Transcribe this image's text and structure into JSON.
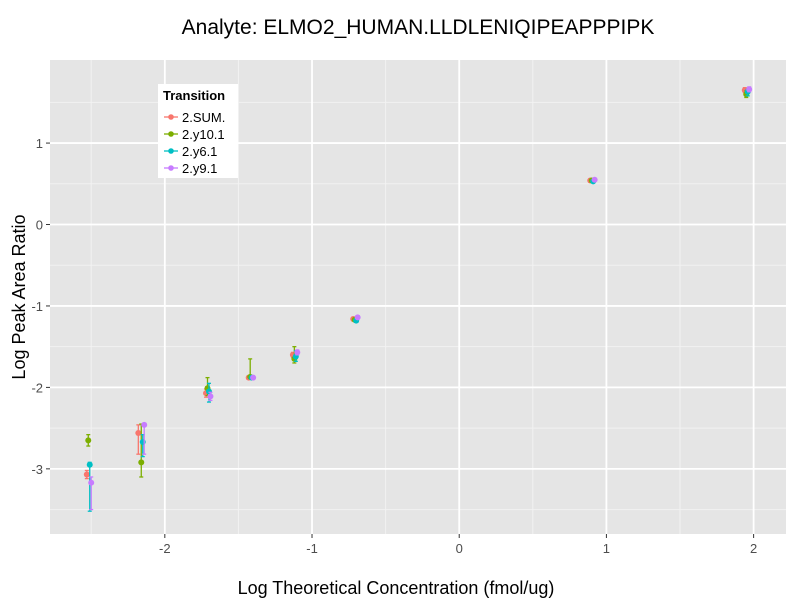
{
  "chart_data": {
    "type": "scatter",
    "title": "Analyte: ELMO2_HUMAN.LLDLENIQIPEAPPPIPK",
    "xlabel": "Log Theoretical Concentration (fmol/ug)",
    "ylabel": "Log Peak Area Ratio",
    "xlim": [
      -2.78,
      2.22
    ],
    "ylim": [
      -3.8,
      2.02
    ],
    "xticks": [
      -2,
      -1,
      0,
      1,
      2
    ],
    "xtick_labels": [
      "-2",
      "-1",
      "0",
      "1",
      "2"
    ],
    "yticks": [
      -3,
      -2,
      -1,
      0,
      1
    ],
    "ytick_labels": [
      "-3",
      "-2",
      "-1",
      "0",
      "1"
    ],
    "legend": {
      "title": "Transition",
      "position": "top-left-inside"
    },
    "series": [
      {
        "name": "2.SUM.",
        "color": "#F8766D",
        "points": [
          {
            "x": -2.53,
            "y": -3.07,
            "ymin": -3.12,
            "ymax": -3.02
          },
          {
            "x": -2.18,
            "y": -2.56,
            "ymin": -2.82,
            "ymax": -2.46
          },
          {
            "x": -1.72,
            "y": -2.07,
            "ymin": -2.12,
            "ymax": -2.02
          },
          {
            "x": -1.43,
            "y": -1.88,
            "ymin": -1.9,
            "ymax": -1.86
          },
          {
            "x": -1.13,
            "y": -1.6,
            "ymin": -1.63,
            "ymax": -1.57
          },
          {
            "x": -0.72,
            "y": -1.16,
            "ymin": -1.18,
            "ymax": -1.14
          },
          {
            "x": 0.89,
            "y": 0.54,
            "ymin": 0.52,
            "ymax": 0.56
          },
          {
            "x": 1.94,
            "y": 1.65,
            "ymin": 1.62,
            "ymax": 1.68
          }
        ]
      },
      {
        "name": "2.y10.1",
        "color": "#7CAE00",
        "points": [
          {
            "x": -2.52,
            "y": -2.65,
            "ymin": -2.72,
            "ymax": -2.58
          },
          {
            "x": -2.16,
            "y": -2.92,
            "ymin": -3.1,
            "ymax": -2.45
          },
          {
            "x": -1.71,
            "y": -2.01,
            "ymin": -2.1,
            "ymax": -1.88
          },
          {
            "x": -1.42,
            "y": -1.87,
            "ymin": -1.88,
            "ymax": -1.65
          },
          {
            "x": -1.12,
            "y": -1.65,
            "ymin": -1.7,
            "ymax": -1.5
          },
          {
            "x": -0.71,
            "y": -1.17,
            "ymin": -1.19,
            "ymax": -1.15
          },
          {
            "x": 0.9,
            "y": 0.54,
            "ymin": 0.53,
            "ymax": 0.55
          },
          {
            "x": 1.95,
            "y": 1.6,
            "ymin": 1.56,
            "ymax": 1.64
          }
        ]
      },
      {
        "name": "2.y6.1",
        "color": "#00BFC4",
        "points": [
          {
            "x": -2.51,
            "y": -2.95,
            "ymin": -3.52,
            "ymax": -2.92
          },
          {
            "x": -2.15,
            "y": -2.67,
            "ymin": -2.85,
            "ymax": -2.58
          },
          {
            "x": -1.7,
            "y": -2.05,
            "ymin": -2.18,
            "ymax": -1.95
          },
          {
            "x": -1.41,
            "y": -1.88,
            "ymin": -1.89,
            "ymax": -1.87
          },
          {
            "x": -1.11,
            "y": -1.62,
            "ymin": -1.68,
            "ymax": -1.55
          },
          {
            "x": -0.7,
            "y": -1.18,
            "ymin": -1.2,
            "ymax": -1.16
          },
          {
            "x": 0.91,
            "y": 0.53,
            "ymin": 0.52,
            "ymax": 0.54
          },
          {
            "x": 1.96,
            "y": 1.63,
            "ymin": 1.58,
            "ymax": 1.66
          }
        ]
      },
      {
        "name": "2.y9.1",
        "color": "#C77CFF",
        "points": [
          {
            "x": -2.5,
            "y": -3.17,
            "ymin": -3.5,
            "ymax": -3.1
          },
          {
            "x": -2.14,
            "y": -2.46,
            "ymin": -2.82,
            "ymax": -2.44
          },
          {
            "x": -1.69,
            "y": -2.11,
            "ymin": -2.16,
            "ymax": -2.06
          },
          {
            "x": -1.4,
            "y": -1.88,
            "ymin": -1.89,
            "ymax": -1.87
          },
          {
            "x": -1.1,
            "y": -1.57,
            "ymin": -1.6,
            "ymax": -1.54
          },
          {
            "x": -0.69,
            "y": -1.14,
            "ymin": -1.16,
            "ymax": -1.12
          },
          {
            "x": 0.92,
            "y": 0.55,
            "ymin": 0.54,
            "ymax": 0.56
          },
          {
            "x": 1.97,
            "y": 1.66,
            "ymin": 1.63,
            "ymax": 1.69
          }
        ]
      }
    ]
  }
}
